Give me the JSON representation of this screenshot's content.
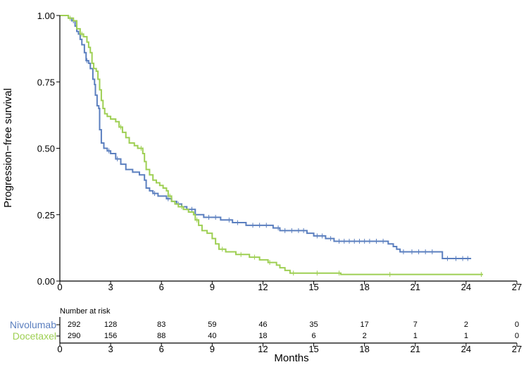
{
  "chart_data": {
    "type": "line",
    "subtype": "kaplan-meier step",
    "xlabel": "Months",
    "ylabel": "Progression−free survival",
    "xlim": [
      0,
      27
    ],
    "ylim": [
      0,
      1
    ],
    "x_ticks": [
      "0",
      "3",
      "6",
      "9",
      "12",
      "15",
      "18",
      "21",
      "24",
      "27"
    ],
    "y_ticks": [
      "0.00",
      "0.25",
      "0.50",
      "0.75",
      "1.00"
    ],
    "series": [
      {
        "name": "Nivolumab",
        "color": "#5b7fbf",
        "steps": [
          [
            0,
            1.0
          ],
          [
            0.5,
            0.99
          ],
          [
            0.7,
            0.98
          ],
          [
            0.9,
            0.96
          ],
          [
            1.0,
            0.94
          ],
          [
            1.1,
            0.93
          ],
          [
            1.2,
            0.91
          ],
          [
            1.3,
            0.89
          ],
          [
            1.45,
            0.86
          ],
          [
            1.55,
            0.83
          ],
          [
            1.7,
            0.82
          ],
          [
            1.8,
            0.8
          ],
          [
            1.95,
            0.76
          ],
          [
            2.05,
            0.74
          ],
          [
            2.1,
            0.7
          ],
          [
            2.2,
            0.66
          ],
          [
            2.3,
            0.65
          ],
          [
            2.35,
            0.57
          ],
          [
            2.45,
            0.52
          ],
          [
            2.6,
            0.5
          ],
          [
            2.8,
            0.49
          ],
          [
            3.0,
            0.48
          ],
          [
            3.3,
            0.46
          ],
          [
            3.6,
            0.44
          ],
          [
            3.9,
            0.42
          ],
          [
            4.3,
            0.41
          ],
          [
            4.7,
            0.4
          ],
          [
            5.0,
            0.38
          ],
          [
            5.1,
            0.35
          ],
          [
            5.3,
            0.34
          ],
          [
            5.5,
            0.33
          ],
          [
            5.8,
            0.32
          ],
          [
            6.3,
            0.31
          ],
          [
            6.6,
            0.3
          ],
          [
            6.9,
            0.29
          ],
          [
            7.2,
            0.28
          ],
          [
            7.5,
            0.27
          ],
          [
            8.0,
            0.25
          ],
          [
            8.5,
            0.24
          ],
          [
            9.5,
            0.23
          ],
          [
            10.2,
            0.22
          ],
          [
            11.0,
            0.21
          ],
          [
            12.6,
            0.2
          ],
          [
            13.0,
            0.19
          ],
          [
            14.6,
            0.18
          ],
          [
            15.0,
            0.17
          ],
          [
            15.7,
            0.16
          ],
          [
            16.2,
            0.15
          ],
          [
            19.4,
            0.14
          ],
          [
            19.7,
            0.13
          ],
          [
            19.9,
            0.12
          ],
          [
            20.1,
            0.11
          ],
          [
            22.6,
            0.085
          ],
          [
            24.3,
            0.085
          ]
        ],
        "censor_times": [
          0.8,
          1.6,
          2.9,
          3.4,
          5.6,
          6.4,
          7.0,
          7.8,
          8.8,
          9.2,
          10.0,
          10.5,
          11.4,
          11.8,
          12.2,
          12.9,
          13.3,
          13.7,
          14.1,
          14.4,
          15.2,
          15.5,
          16.0,
          16.5,
          16.8,
          17.1,
          17.4,
          17.7,
          18.0,
          18.3,
          18.7,
          19.1,
          20.3,
          20.8,
          21.2,
          21.6,
          22.0,
          22.9,
          23.4,
          23.8,
          24.1
        ],
        "at_risk": [
          292,
          128,
          83,
          59,
          46,
          35,
          17,
          7,
          2,
          0
        ]
      },
      {
        "name": "Docetaxel",
        "color": "#9ecf53",
        "steps": [
          [
            0,
            1.0
          ],
          [
            0.5,
            0.99
          ],
          [
            0.8,
            0.98
          ],
          [
            1.0,
            0.95
          ],
          [
            1.2,
            0.93
          ],
          [
            1.4,
            0.92
          ],
          [
            1.6,
            0.9
          ],
          [
            1.7,
            0.88
          ],
          [
            1.8,
            0.86
          ],
          [
            1.9,
            0.82
          ],
          [
            2.0,
            0.8
          ],
          [
            2.15,
            0.79
          ],
          [
            2.25,
            0.76
          ],
          [
            2.35,
            0.72
          ],
          [
            2.45,
            0.68
          ],
          [
            2.55,
            0.65
          ],
          [
            2.65,
            0.63
          ],
          [
            2.8,
            0.62
          ],
          [
            3.0,
            0.61
          ],
          [
            3.3,
            0.6
          ],
          [
            3.5,
            0.58
          ],
          [
            3.7,
            0.56
          ],
          [
            3.9,
            0.54
          ],
          [
            4.1,
            0.52
          ],
          [
            4.4,
            0.51
          ],
          [
            4.6,
            0.5
          ],
          [
            4.9,
            0.48
          ],
          [
            5.0,
            0.45
          ],
          [
            5.1,
            0.42
          ],
          [
            5.3,
            0.4
          ],
          [
            5.5,
            0.38
          ],
          [
            5.7,
            0.37
          ],
          [
            5.9,
            0.36
          ],
          [
            6.1,
            0.35
          ],
          [
            6.3,
            0.34
          ],
          [
            6.4,
            0.32
          ],
          [
            6.6,
            0.3
          ],
          [
            6.8,
            0.29
          ],
          [
            7.0,
            0.28
          ],
          [
            7.3,
            0.27
          ],
          [
            7.6,
            0.26
          ],
          [
            7.9,
            0.25
          ],
          [
            8.0,
            0.23
          ],
          [
            8.2,
            0.21
          ],
          [
            8.4,
            0.19
          ],
          [
            8.7,
            0.18
          ],
          [
            9.0,
            0.16
          ],
          [
            9.2,
            0.14
          ],
          [
            9.4,
            0.12
          ],
          [
            9.8,
            0.11
          ],
          [
            10.4,
            0.1
          ],
          [
            11.2,
            0.09
          ],
          [
            11.8,
            0.08
          ],
          [
            12.3,
            0.07
          ],
          [
            12.8,
            0.06
          ],
          [
            13.0,
            0.05
          ],
          [
            13.3,
            0.04
          ],
          [
            13.6,
            0.03
          ],
          [
            16.6,
            0.025
          ],
          [
            25.0,
            0.025
          ]
        ],
        "censor_times": [
          0.6,
          1.3,
          3.6,
          4.8,
          6.5,
          7.2,
          8.1,
          9.6,
          10.7,
          11.5,
          12.4,
          13.8,
          15.2,
          16.5,
          19.5,
          24.9
        ],
        "at_risk": [
          290,
          156,
          88,
          40,
          18,
          6,
          2,
          1,
          1,
          0
        ]
      }
    ],
    "risk_table": {
      "title": "Number at risk",
      "times": [
        "0",
        "3",
        "6",
        "9",
        "12",
        "15",
        "18",
        "21",
        "24",
        "27"
      ]
    }
  }
}
